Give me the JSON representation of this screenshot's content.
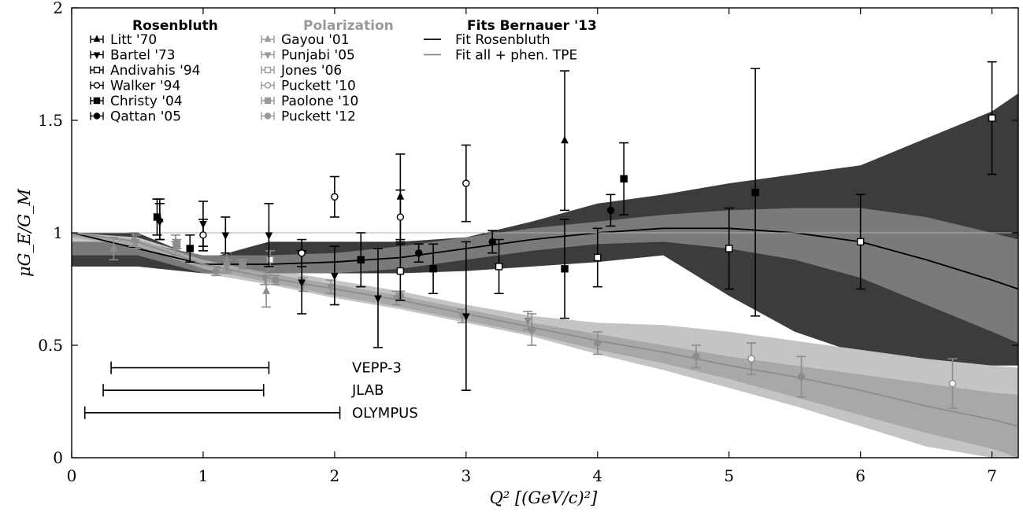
{
  "chart_data": {
    "type": "scatter",
    "xlabel": "Q² [(GeV/c)²]",
    "ylabel": "μG_E/G_M",
    "xlim": [
      0,
      7.2
    ],
    "ylim": [
      0,
      2
    ],
    "x_ticks": [
      "0",
      "1",
      "2",
      "3",
      "4",
      "5",
      "6",
      "7"
    ],
    "y_ticks": [
      "0",
      "0.5",
      "1",
      "1.5",
      "2"
    ],
    "reference_line_y": 1,
    "legend_groups": [
      {
        "heading": "Rosenbluth",
        "color": "#000000",
        "entries": [
          "Litt '70",
          "Bartel '73",
          "Andivahis '94",
          "Walker '94",
          "Christy '04",
          "Qattan '05"
        ]
      },
      {
        "heading": "Polarization",
        "color": "#999999",
        "entries": [
          "Gayou '01",
          "Punjabi '05",
          "Jones '06",
          "Puckett '10",
          "Paolone '10",
          "Puckett '12"
        ]
      },
      {
        "heading": "Fits Bernauer '13",
        "color": "#000000",
        "entries": [
          "Fit Rosenbluth",
          "Fit all + phen. TPE"
        ]
      }
    ],
    "range_bars": [
      {
        "name": "VEPP-3",
        "x": [
          0.3,
          1.5
        ],
        "y": 0.4
      },
      {
        "name": "JLAB",
        "x": [
          0.24,
          1.46
        ],
        "y": 0.3
      },
      {
        "name": "OLYMPUS",
        "x": [
          0.1,
          2.04
        ],
        "y": 0.2
      }
    ],
    "series": [
      {
        "name": "Litt '70",
        "group": "Rosenbluth",
        "marker": "triangle-up",
        "fill": true,
        "points": [
          [
            0.67,
            1.06,
            0.09
          ],
          [
            2.5,
            1.16,
            0.19
          ],
          [
            3.75,
            1.41,
            0.31
          ]
        ]
      },
      {
        "name": "Bartel '73",
        "group": "Rosenbluth",
        "marker": "triangle-down",
        "fill": true,
        "points": [
          [
            0.67,
            1.05,
            0.08
          ],
          [
            1.0,
            1.04,
            0.1
          ],
          [
            1.17,
            0.99,
            0.08
          ],
          [
            1.5,
            0.99,
            0.14
          ],
          [
            1.75,
            0.78,
            0.14
          ],
          [
            2.0,
            0.81,
            0.13
          ],
          [
            2.33,
            0.71,
            0.22
          ],
          [
            3.0,
            0.63,
            0.33
          ]
        ]
      },
      {
        "name": "Andivahis '94",
        "group": "Rosenbluth",
        "marker": "square",
        "fill": false,
        "points": [
          [
            2.5,
            0.83,
            0.13
          ],
          [
            3.25,
            0.85,
            0.12
          ],
          [
            4.0,
            0.89,
            0.13
          ],
          [
            5.0,
            0.93,
            0.18
          ],
          [
            6.0,
            0.96,
            0.21
          ],
          [
            7.0,
            1.51,
            0.25
          ]
        ]
      },
      {
        "name": "Walker '94",
        "group": "Rosenbluth",
        "marker": "circle",
        "fill": false,
        "points": [
          [
            1.0,
            0.99,
            0.07
          ],
          [
            1.75,
            0.91,
            0.06
          ],
          [
            2.0,
            1.16,
            0.09
          ],
          [
            2.5,
            1.07,
            0.12
          ],
          [
            3.0,
            1.22,
            0.17
          ]
        ]
      },
      {
        "name": "Christy '04",
        "group": "Rosenbluth",
        "marker": "square",
        "fill": true,
        "points": [
          [
            0.65,
            1.07,
            0.08
          ],
          [
            0.9,
            0.93,
            0.06
          ],
          [
            2.2,
            0.88,
            0.12
          ],
          [
            2.75,
            0.84,
            0.11
          ],
          [
            3.75,
            0.84,
            0.22
          ],
          [
            4.2,
            1.24,
            0.16
          ],
          [
            5.2,
            1.18,
            0.55
          ]
        ]
      },
      {
        "name": "Qattan '05",
        "group": "Rosenbluth",
        "marker": "circle",
        "fill": true,
        "points": [
          [
            2.64,
            0.91,
            0.04
          ],
          [
            3.2,
            0.96,
            0.05
          ],
          [
            4.1,
            1.1,
            0.07
          ]
        ]
      },
      {
        "name": "Gayou '01",
        "group": "Polarization",
        "marker": "triangle-up",
        "fill": true,
        "points": [
          [
            0.32,
            0.93,
            0.05
          ],
          [
            0.47,
            0.97,
            0.03
          ],
          [
            0.79,
            0.96,
            0.03
          ],
          [
            1.18,
            0.87,
            0.04
          ],
          [
            1.48,
            0.74,
            0.07
          ]
        ]
      },
      {
        "name": "Punjabi '05",
        "group": "Polarization",
        "marker": "triangle-down",
        "fill": true,
        "points": [
          [
            0.49,
            0.96,
            0.03
          ],
          [
            0.79,
            0.93,
            0.03
          ],
          [
            1.18,
            0.85,
            0.03
          ],
          [
            1.47,
            0.8,
            0.03
          ],
          [
            1.76,
            0.77,
            0.03
          ],
          [
            1.97,
            0.76,
            0.03
          ],
          [
            2.47,
            0.71,
            0.03
          ],
          [
            2.97,
            0.63,
            0.03
          ],
          [
            3.47,
            0.61,
            0.04
          ]
        ]
      },
      {
        "name": "Jones '06",
        "group": "Polarization",
        "marker": "square",
        "fill": false,
        "points": [
          [
            1.51,
            0.88,
            0.04
          ]
        ]
      },
      {
        "name": "Puckett '10",
        "group": "Polarization",
        "marker": "circle",
        "fill": false,
        "points": [
          [
            5.17,
            0.44,
            0.07
          ],
          [
            6.7,
            0.33,
            0.11
          ]
        ]
      },
      {
        "name": "Paolone '10",
        "group": "Polarization",
        "marker": "square",
        "fill": true,
        "points": [
          [
            0.8,
            0.95,
            0.02
          ],
          [
            1.3,
            0.86,
            0.02
          ]
        ]
      },
      {
        "name": "Puckett '12",
        "group": "Polarization",
        "marker": "circle",
        "fill": true,
        "points": [
          [
            1.1,
            0.83,
            0.02
          ],
          [
            1.55,
            0.79,
            0.02
          ],
          [
            2.5,
            0.72,
            0.02
          ],
          [
            3.5,
            0.57,
            0.07
          ],
          [
            4.0,
            0.51,
            0.05
          ],
          [
            4.75,
            0.45,
            0.05
          ],
          [
            5.55,
            0.36,
            0.09
          ]
        ]
      }
    ],
    "fit_rosenbluth": {
      "x": [
        0,
        0.5,
        1.0,
        1.5,
        2.0,
        2.5,
        3.0,
        3.5,
        4.0,
        4.5,
        5.0,
        5.5,
        6.0,
        6.5,
        7.0,
        7.2
      ],
      "y": [
        1.0,
        0.93,
        0.86,
        0.86,
        0.87,
        0.89,
        0.93,
        0.97,
        1.0,
        1.02,
        1.02,
        1.0,
        0.96,
        0.88,
        0.79,
        0.75
      ],
      "band_inner": [
        [
          0.9,
          0.96
        ],
        [
          0.9,
          0.96
        ],
        [
          0.82,
          0.9
        ],
        [
          0.82,
          0.9
        ],
        [
          0.82,
          0.91
        ],
        [
          0.84,
          0.94
        ],
        [
          0.88,
          0.98
        ],
        [
          0.92,
          1.02
        ],
        [
          0.95,
          1.05
        ],
        [
          0.96,
          1.08
        ],
        [
          0.93,
          1.1
        ],
        [
          0.88,
          1.11
        ],
        [
          0.8,
          1.11
        ],
        [
          0.68,
          1.07
        ],
        [
          0.56,
          1.0
        ],
        [
          0.51,
          0.97
        ]
      ],
      "band_outer": [
        [
          0.85,
          1.0
        ],
        [
          0.85,
          1.0
        ],
        [
          0.82,
          0.88
        ],
        [
          0.82,
          0.96
        ],
        [
          0.82,
          0.96
        ],
        [
          0.82,
          0.96
        ],
        [
          0.83,
          0.98
        ],
        [
          0.85,
          1.05
        ],
        [
          0.87,
          1.13
        ],
        [
          0.9,
          1.17
        ],
        [
          0.72,
          1.22
        ],
        [
          0.56,
          1.26
        ],
        [
          0.46,
          1.3
        ],
        [
          0.43,
          1.42
        ],
        [
          0.41,
          1.54
        ],
        [
          0.41,
          1.62
        ]
      ]
    },
    "fit_all_tpe": {
      "x": [
        0,
        0.5,
        1.0,
        1.5,
        2.0,
        2.5,
        3.0,
        3.5,
        4.0,
        4.5,
        5.0,
        5.5,
        6.0,
        6.5,
        7.0,
        7.2
      ],
      "y": [
        1.0,
        0.96,
        0.86,
        0.8,
        0.75,
        0.7,
        0.64,
        0.58,
        0.52,
        0.47,
        0.41,
        0.36,
        0.3,
        0.23,
        0.17,
        0.14
      ],
      "band_inner": [
        [
          0.98,
          1.0
        ],
        [
          0.94,
          0.97
        ],
        [
          0.84,
          0.88
        ],
        [
          0.78,
          0.82
        ],
        [
          0.72,
          0.77
        ],
        [
          0.67,
          0.72
        ],
        [
          0.61,
          0.66
        ],
        [
          0.55,
          0.6
        ],
        [
          0.48,
          0.55
        ],
        [
          0.42,
          0.5
        ],
        [
          0.35,
          0.45
        ],
        [
          0.27,
          0.41
        ],
        [
          0.19,
          0.37
        ],
        [
          0.11,
          0.33
        ],
        [
          0.04,
          0.29
        ],
        [
          0.0,
          0.28
        ]
      ],
      "band_outer": [
        [
          0.96,
          1.0
        ],
        [
          0.92,
          0.98
        ],
        [
          0.82,
          0.89
        ],
        [
          0.77,
          0.84
        ],
        [
          0.71,
          0.79
        ],
        [
          0.66,
          0.74
        ],
        [
          0.6,
          0.68
        ],
        [
          0.54,
          0.63
        ],
        [
          0.46,
          0.6
        ],
        [
          0.39,
          0.59
        ],
        [
          0.31,
          0.56
        ],
        [
          0.23,
          0.52
        ],
        [
          0.14,
          0.48
        ],
        [
          0.05,
          0.44
        ],
        [
          0.0,
          0.41
        ],
        [
          0.0,
          0.4
        ]
      ]
    }
  }
}
